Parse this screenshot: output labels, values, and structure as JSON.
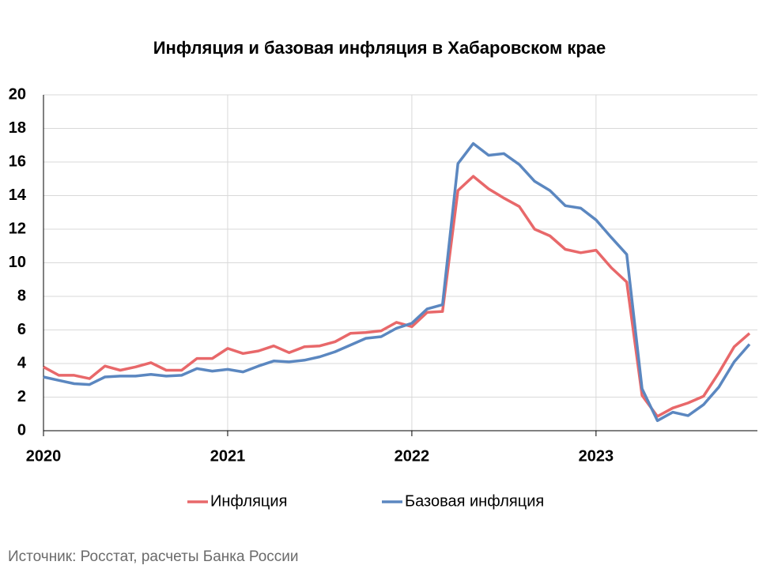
{
  "chart_data": {
    "type": "line",
    "title": "Инфляция и базовая инфляция в Хабаровском крае",
    "source": "Источник: Росстат, расчеты Банка России",
    "categories": [
      "2020",
      null,
      null,
      null,
      null,
      null,
      null,
      null,
      null,
      null,
      null,
      null,
      "2021",
      null,
      null,
      null,
      null,
      null,
      null,
      null,
      null,
      null,
      null,
      null,
      "2022",
      null,
      null,
      null,
      null,
      null,
      null,
      null,
      null,
      null,
      null,
      null,
      "2023",
      null,
      null,
      null,
      null,
      null,
      null,
      null,
      null,
      null,
      null
    ],
    "series": [
      {
        "name": "Инфляция",
        "color": "#e8686a",
        "values": [
          3.8,
          3.3,
          3.3,
          3.1,
          3.85,
          3.6,
          3.8,
          4.05,
          3.6,
          3.6,
          4.3,
          4.3,
          4.9,
          4.6,
          4.75,
          5.05,
          4.65,
          5.0,
          5.05,
          5.3,
          5.8,
          5.85,
          5.95,
          6.45,
          6.2,
          7.05,
          7.1,
          14.3,
          15.15,
          14.4,
          13.85,
          13.35,
          12.0,
          11.6,
          10.8,
          10.6,
          10.75,
          9.7,
          8.85,
          2.1,
          0.85,
          1.35,
          1.65,
          2.05,
          3.45,
          5.0,
          5.8
        ]
      },
      {
        "name": "Базовая инфляция",
        "color": "#5b87c0",
        "values": [
          3.2,
          3.0,
          2.8,
          2.75,
          3.2,
          3.25,
          3.25,
          3.35,
          3.25,
          3.3,
          3.7,
          3.55,
          3.65,
          3.5,
          3.85,
          4.15,
          4.1,
          4.2,
          4.4,
          4.7,
          5.1,
          5.5,
          5.6,
          6.1,
          6.4,
          7.25,
          7.5,
          15.9,
          17.1,
          16.4,
          16.5,
          15.85,
          14.85,
          14.3,
          13.4,
          13.25,
          12.55,
          11.5,
          10.5,
          2.5,
          0.6,
          1.1,
          0.9,
          1.55,
          2.6,
          4.1,
          5.15
        ]
      }
    ],
    "ylim": [
      0,
      20
    ],
    "yticks": [
      0,
      2,
      4,
      6,
      8,
      10,
      12,
      14,
      16,
      18,
      20
    ],
    "grid": true,
    "legend": "bottom"
  }
}
